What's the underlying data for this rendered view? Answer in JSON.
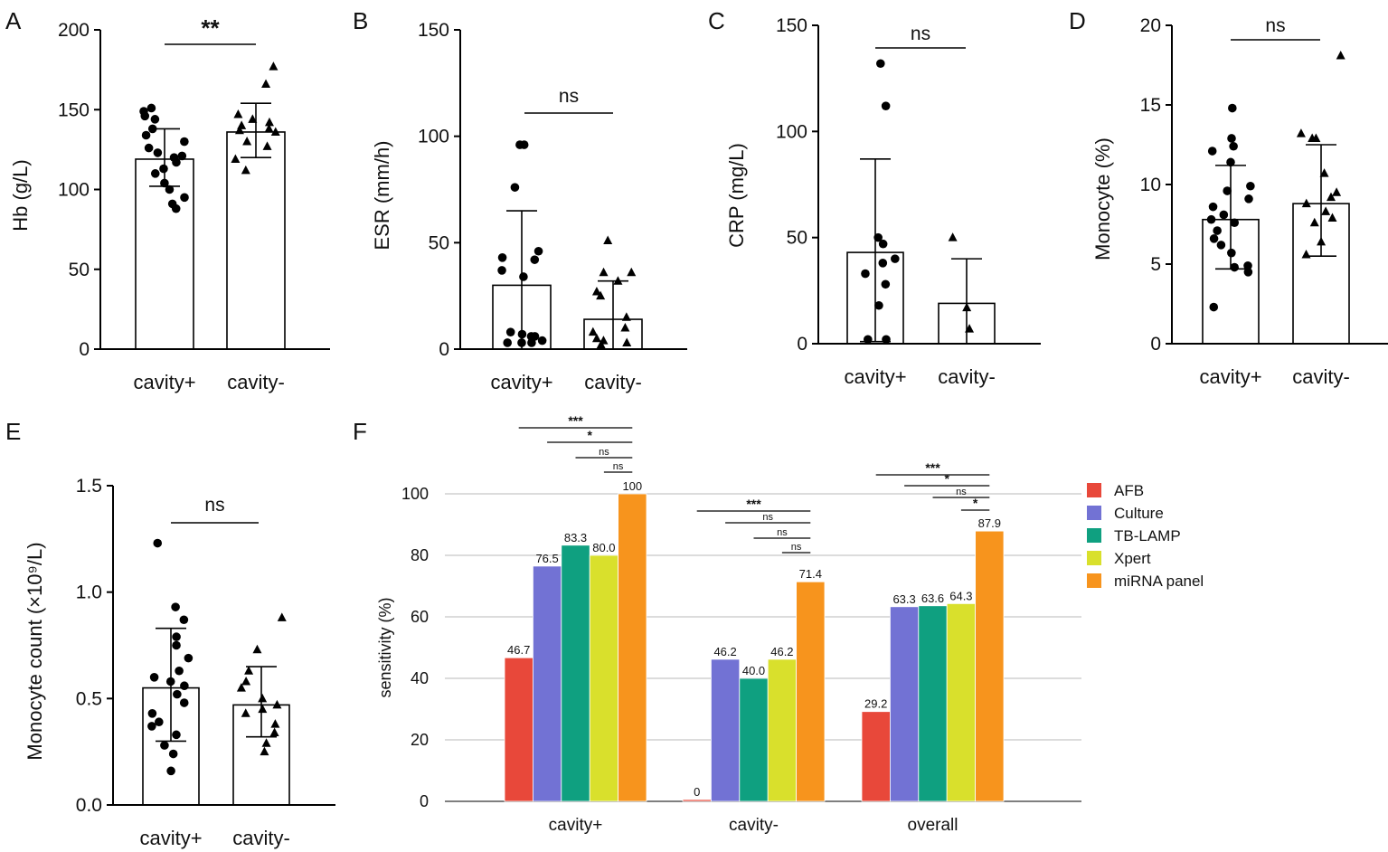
{
  "chart_data": [
    {
      "panel_letter": "A",
      "type": "bar",
      "ylabel": "Hb (g/L)",
      "ylim": [
        0,
        200
      ],
      "yticks": [
        0,
        50,
        100,
        150,
        200
      ],
      "categories": [
        "cavity+",
        "cavity-"
      ],
      "values": [
        119,
        136
      ],
      "error_low": [
        102,
        120
      ],
      "error_high": [
        138,
        154
      ],
      "points": [
        [
          149,
          151,
          146,
          144,
          138,
          134,
          130,
          126,
          123,
          121,
          120,
          117,
          113,
          110,
          104,
          100,
          95,
          91,
          88
        ],
        [
          177,
          166,
          147,
          144,
          142,
          140,
          138,
          137,
          136,
          130,
          127,
          119,
          112
        ]
      ],
      "markers": [
        "circle",
        "triangle"
      ],
      "significance": "**"
    },
    {
      "panel_letter": "B",
      "type": "bar",
      "ylabel": "ESR (mm/h)",
      "ylim": [
        0,
        150
      ],
      "yticks": [
        0,
        50,
        100,
        150
      ],
      "categories": [
        "cavity+",
        "cavity-"
      ],
      "values": [
        30,
        14
      ],
      "error_low": [
        0,
        0
      ],
      "error_high": [
        65,
        32
      ],
      "points": [
        [
          96,
          96,
          76,
          46,
          43,
          42,
          37,
          34,
          8,
          7,
          6,
          6,
          4,
          3,
          3,
          3
        ],
        [
          51,
          36,
          36,
          32,
          27,
          25,
          15,
          10,
          8,
          5,
          4,
          3,
          2
        ]
      ],
      "markers": [
        "circle",
        "triangle"
      ],
      "significance": "ns"
    },
    {
      "panel_letter": "C",
      "type": "bar",
      "ylabel": "CRP (mg/L)",
      "ylim": [
        0,
        150
      ],
      "yticks": [
        0,
        50,
        100,
        150
      ],
      "categories": [
        "cavity+",
        "cavity-"
      ],
      "values": [
        43,
        19
      ],
      "error_low": [
        1,
        0
      ],
      "error_high": [
        87,
        40
      ],
      "points": [
        [
          132,
          112,
          50,
          47,
          40,
          38,
          33,
          28,
          18,
          2,
          2
        ],
        [
          50,
          17,
          7
        ]
      ],
      "markers": [
        "circle",
        "triangle"
      ],
      "significance": "ns"
    },
    {
      "panel_letter": "D",
      "type": "bar",
      "ylabel": "Monocyte (%)",
      "ylim": [
        0,
        20
      ],
      "yticks": [
        0,
        5,
        10,
        15,
        20
      ],
      "categories": [
        "cavity+",
        "cavity-"
      ],
      "values": [
        7.8,
        8.8
      ],
      "error_low": [
        4.7,
        5.5
      ],
      "error_high": [
        11.2,
        12.5
      ],
      "points": [
        [
          14.8,
          12.9,
          12.4,
          12.1,
          11.4,
          9.9,
          9.6,
          9.1,
          8.6,
          8.1,
          7.8,
          7.6,
          7.1,
          6.6,
          6.2,
          5.7,
          4.9,
          4.8,
          4.5,
          2.3
        ],
        [
          18.1,
          13.2,
          12.9,
          12.9,
          10.7,
          9.5,
          9.2,
          8.8,
          8.3,
          7.9,
          7.6,
          6.4,
          5.6
        ]
      ],
      "markers": [
        "circle",
        "triangle"
      ],
      "significance": "ns"
    },
    {
      "panel_letter": "E",
      "type": "bar",
      "ylabel": "Monocyte count (×10⁹/L)",
      "ylim": [
        0,
        1.5
      ],
      "yticks": [
        "0.0",
        "0.5",
        "1.0",
        "1.5"
      ],
      "categories": [
        "cavity+",
        "cavity-"
      ],
      "values": [
        0.55,
        0.47
      ],
      "error_low": [
        0.3,
        0.32
      ],
      "error_high": [
        0.83,
        0.65
      ],
      "points": [
        [
          1.23,
          0.93,
          0.87,
          0.79,
          0.75,
          0.69,
          0.63,
          0.6,
          0.58,
          0.56,
          0.52,
          0.48,
          0.43,
          0.39,
          0.37,
          0.33,
          0.28,
          0.24,
          0.16
        ],
        [
          0.88,
          0.73,
          0.63,
          0.58,
          0.55,
          0.5,
          0.47,
          0.45,
          0.43,
          0.38,
          0.34,
          0.29,
          0.25
        ]
      ],
      "markers": [
        "circle",
        "triangle"
      ],
      "significance": "ns"
    },
    {
      "panel_letter": "F",
      "type": "bar",
      "ylabel": "sensitivity (%)",
      "ylim": [
        0,
        100
      ],
      "yticks": [
        0,
        20,
        40,
        60,
        80,
        100
      ],
      "grid": true,
      "legend_position": "right",
      "categories": [
        "cavity+",
        "cavity-",
        "overall"
      ],
      "series": [
        {
          "name": "AFB",
          "color": "#e8483a",
          "values": [
            46.7,
            0,
            29.2
          ],
          "labels": [
            "46.7",
            "0",
            "29.2"
          ]
        },
        {
          "name": "Culture",
          "color": "#7272d4",
          "values": [
            76.5,
            46.2,
            63.3
          ],
          "labels": [
            "76.5",
            "46.2",
            "63.3"
          ]
        },
        {
          "name": "TB-LAMP",
          "color": "#0fa080",
          "values": [
            83.3,
            40.0,
            63.6
          ],
          "labels": [
            "83.3",
            "40.0",
            "63.6"
          ]
        },
        {
          "name": "Xpert",
          "color": "#d9e02c",
          "values": [
            80.0,
            46.2,
            64.3
          ],
          "labels": [
            "80.0",
            "46.2",
            "64.3"
          ]
        },
        {
          "name": "miRNA panel",
          "color": "#f7941d",
          "values": [
            100,
            71.4,
            87.9
          ],
          "labels": [
            "100",
            "71.4",
            "87.9"
          ]
        }
      ],
      "significance": [
        [
          "***",
          "*",
          "ns",
          "ns"
        ],
        [
          "***",
          "ns",
          "ns",
          "ns"
        ],
        [
          "***",
          "*",
          "ns",
          "*"
        ]
      ]
    }
  ]
}
